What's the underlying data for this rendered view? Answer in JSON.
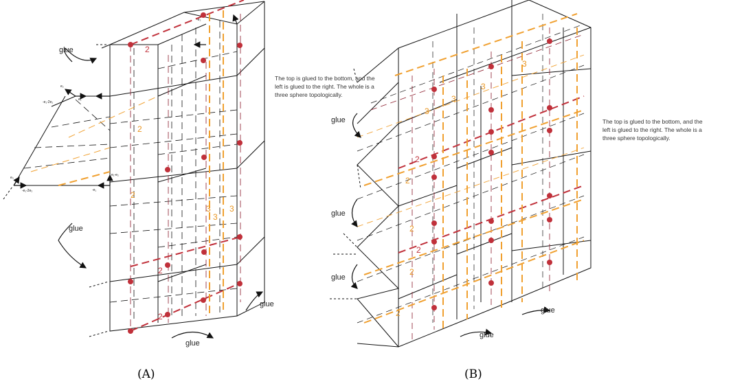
{
  "panelA": {
    "caption": "(A)",
    "glue_labels": [
      "glue",
      "glue",
      "glue",
      "glue"
    ],
    "numbers_orange": [
      "2",
      "2",
      "3",
      "3",
      "3"
    ],
    "numbers_red": [
      "2",
      "2",
      "2"
    ],
    "vector_labels": [
      "-e₁-2e₂",
      "e₂",
      "e₁",
      "e₃",
      "e₁-e₂",
      "-e₁-2e₂",
      "-e₁",
      "-e₂"
    ]
  },
  "panelB": {
    "caption": "(B)",
    "note_lines": [
      "The top is glued to the bottom, and the",
      "left is glued to the right.  The whole is a",
      "three sphere topologically."
    ],
    "glue_labels": [
      "glue",
      "glue",
      "glue",
      "glue",
      "glue"
    ],
    "numbers_orange": [
      "3",
      "3",
      "3",
      "3",
      "2",
      "2",
      "2",
      "2"
    ],
    "numbers_red": [
      "2",
      "2"
    ]
  },
  "side_note": {
    "lines": [
      "The top is glued to the bottom, and the",
      "left is glued to the right.  The whole is a",
      "three sphere topologically."
    ]
  },
  "colors": {
    "orange": "#f0a030",
    "red": "#c0303a",
    "dark_red": "#8b1a2a",
    "line": "#111111"
  }
}
